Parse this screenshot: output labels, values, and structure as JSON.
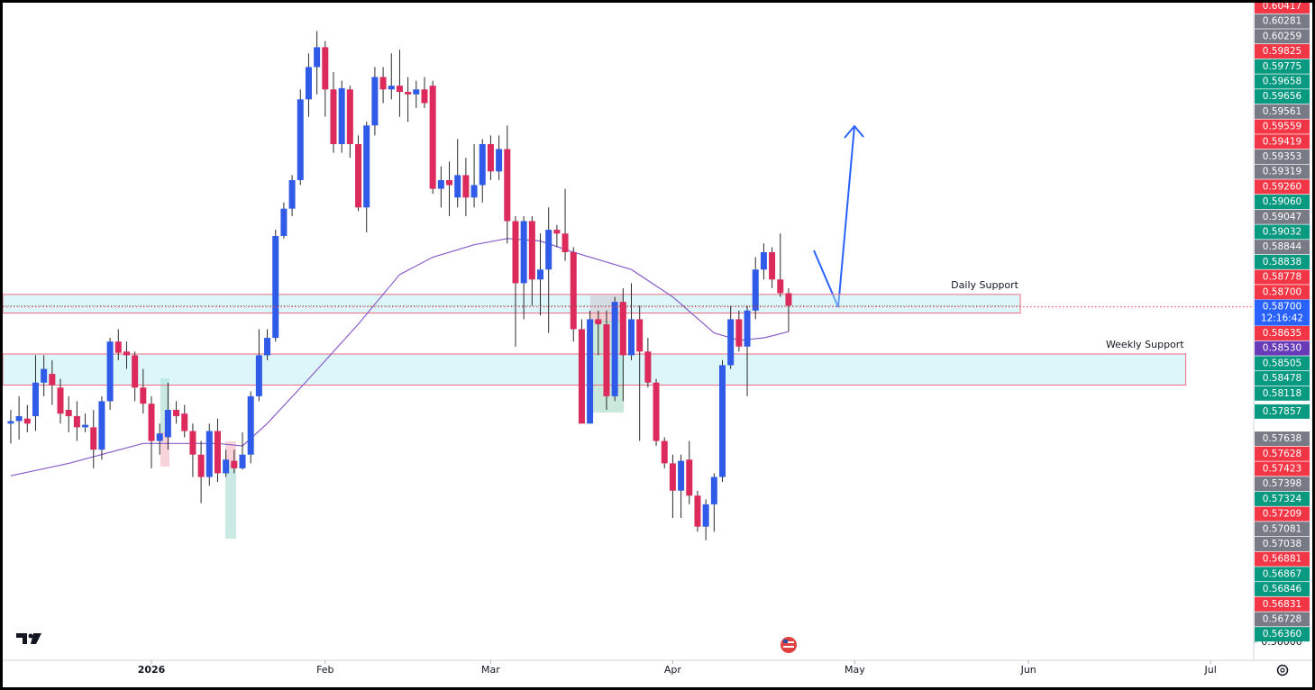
{
  "chart_data": {
    "type": "candlestick",
    "up_color": "#2f5be8",
    "down_color": "#dc2a5c",
    "wick_color": "#2a2a2a",
    "xlim": [
      -1.3,
      150.1
    ],
    "ylim": [
      0.5584,
      0.6117
    ],
    "xticks": [
      {
        "value": 17,
        "label": "2026"
      },
      {
        "value": 38,
        "label": "Feb"
      },
      {
        "value": 58,
        "label": "Mar"
      },
      {
        "value": 80,
        "label": "Apr"
      },
      {
        "value": 102,
        "label": "May"
      },
      {
        "value": 123,
        "label": "Jun"
      },
      {
        "value": 145,
        "label": "Jul"
      }
    ],
    "yticks": [
      {
        "value": 0.56,
        "label": "0.56000"
      }
    ],
    "ohlc": [
      [
        0.5776,
        0.5787,
        0.576,
        0.5778
      ],
      [
        0.5778,
        0.5798,
        0.5763,
        0.5782
      ],
      [
        0.578,
        0.5791,
        0.5769,
        0.5776
      ],
      [
        0.5782,
        0.5831,
        0.577,
        0.5809
      ],
      [
        0.5809,
        0.5831,
        0.5798,
        0.582
      ],
      [
        0.5816,
        0.5827,
        0.5791,
        0.5807
      ],
      [
        0.5805,
        0.5812,
        0.5776,
        0.5784
      ],
      [
        0.5787,
        0.5798,
        0.5769,
        0.5782
      ],
      [
        0.5782,
        0.5794,
        0.5762,
        0.5773
      ],
      [
        0.5773,
        0.5784,
        0.5769,
        0.5775
      ],
      [
        0.5773,
        0.5787,
        0.574,
        0.5755
      ],
      [
        0.5755,
        0.5798,
        0.5747,
        0.5794
      ],
      [
        0.5794,
        0.5845,
        0.5787,
        0.5842
      ],
      [
        0.5842,
        0.5852,
        0.5827,
        0.5833
      ],
      [
        0.5834,
        0.5842,
        0.582,
        0.5831
      ],
      [
        0.5831,
        0.5834,
        0.5794,
        0.5805
      ],
      [
        0.5805,
        0.582,
        0.5784,
        0.5792
      ],
      [
        0.5792,
        0.5798,
        0.574,
        0.5762
      ],
      [
        0.5762,
        0.5776,
        0.5751,
        0.5768
      ],
      [
        0.5765,
        0.5809,
        0.5755,
        0.5787
      ],
      [
        0.5787,
        0.5794,
        0.5776,
        0.5782
      ],
      [
        0.5784,
        0.5791,
        0.5765,
        0.577
      ],
      [
        0.577,
        0.5776,
        0.5733,
        0.5751
      ],
      [
        0.5751,
        0.5762,
        0.5712,
        0.5733
      ],
      [
        0.5733,
        0.5776,
        0.5726,
        0.577
      ],
      [
        0.577,
        0.578,
        0.5729,
        0.5736
      ],
      [
        0.5736,
        0.5755,
        0.5733,
        0.5747
      ],
      [
        0.5746,
        0.5755,
        0.5736,
        0.574
      ],
      [
        0.574,
        0.5769,
        0.5739,
        0.5751
      ],
      [
        0.5751,
        0.5802,
        0.5744,
        0.5798
      ],
      [
        0.5798,
        0.5852,
        0.5794,
        0.5831
      ],
      [
        0.5831,
        0.5852,
        0.5827,
        0.5845
      ],
      [
        0.5845,
        0.5932,
        0.5842,
        0.5927
      ],
      [
        0.5927,
        0.5954,
        0.5925,
        0.5949
      ],
      [
        0.5949,
        0.5976,
        0.5943,
        0.5972
      ],
      [
        0.5972,
        0.6045,
        0.5968,
        0.6037
      ],
      [
        0.6037,
        0.6074,
        0.6023,
        0.6063
      ],
      [
        0.6063,
        0.6092,
        0.6041,
        0.6079
      ],
      [
        0.6079,
        0.6084,
        0.6023,
        0.6045
      ],
      [
        0.6045,
        0.6059,
        0.5994,
        0.6001
      ],
      [
        0.6001,
        0.6052,
        0.5994,
        0.6046
      ],
      [
        0.6045,
        0.6048,
        0.599,
        0.6001
      ],
      [
        0.6001,
        0.6008,
        0.5947,
        0.595
      ],
      [
        0.595,
        0.6019,
        0.593,
        0.6016
      ],
      [
        0.6016,
        0.6063,
        0.6008,
        0.6055
      ],
      [
        0.6055,
        0.6063,
        0.6034,
        0.6045
      ],
      [
        0.6045,
        0.6074,
        0.6037,
        0.6048
      ],
      [
        0.6048,
        0.6077,
        0.6023,
        0.6043
      ],
      [
        0.6043,
        0.6055,
        0.6019,
        0.6041
      ],
      [
        0.6041,
        0.6052,
        0.603,
        0.6045
      ],
      [
        0.6045,
        0.6055,
        0.603,
        0.6034
      ],
      [
        0.6048,
        0.6052,
        0.5961,
        0.5965
      ],
      [
        0.5965,
        0.5983,
        0.595,
        0.5972
      ],
      [
        0.5972,
        0.5987,
        0.5943,
        0.5968
      ],
      [
        0.5958,
        0.6005,
        0.595,
        0.5976
      ],
      [
        0.5976,
        0.599,
        0.5943,
        0.5958
      ],
      [
        0.5958,
        0.6001,
        0.595,
        0.5968
      ],
      [
        0.5968,
        0.6005,
        0.5954,
        0.6001
      ],
      [
        0.6001,
        0.6008,
        0.5972,
        0.5979
      ],
      [
        0.5979,
        0.6008,
        0.5972,
        0.5997
      ],
      [
        0.5997,
        0.6016,
        0.5921,
        0.5939
      ],
      [
        0.5939,
        0.5943,
        0.5838,
        0.5889
      ],
      [
        0.5889,
        0.5943,
        0.586,
        0.5939
      ],
      [
        0.5939,
        0.5943,
        0.5871,
        0.5892
      ],
      [
        0.5892,
        0.5929,
        0.5863,
        0.59
      ],
      [
        0.59,
        0.595,
        0.5849,
        0.5932
      ],
      [
        0.5932,
        0.5936,
        0.5918,
        0.5929
      ],
      [
        0.5929,
        0.5965,
        0.5907,
        0.5914
      ],
      [
        0.5914,
        0.5918,
        0.5842,
        0.5852
      ],
      [
        0.5852,
        0.586,
        0.5776,
        0.5776
      ],
      [
        0.5776,
        0.5867,
        0.5776,
        0.586
      ],
      [
        0.586,
        0.5867,
        0.5831,
        0.5856
      ],
      [
        0.5856,
        0.5867,
        0.5787,
        0.5798
      ],
      [
        0.5798,
        0.5878,
        0.5794,
        0.5874
      ],
      [
        0.5874,
        0.5885,
        0.5794,
        0.5831
      ],
      [
        0.5831,
        0.5889,
        0.5827,
        0.586
      ],
      [
        0.586,
        0.5871,
        0.5762,
        0.5834
      ],
      [
        0.5834,
        0.5845,
        0.5805,
        0.5809
      ],
      [
        0.5809,
        0.5812,
        0.5758,
        0.5762
      ],
      [
        0.5762,
        0.5765,
        0.574,
        0.5744
      ],
      [
        0.5744,
        0.5751,
        0.57,
        0.5722
      ],
      [
        0.5722,
        0.5751,
        0.57,
        0.5746
      ],
      [
        0.5747,
        0.5762,
        0.5711,
        0.5718
      ],
      [
        0.5718,
        0.5722,
        0.5689,
        0.5693
      ],
      [
        0.5693,
        0.5715,
        0.5682,
        0.5711
      ],
      [
        0.5711,
        0.5736,
        0.5689,
        0.5733
      ],
      [
        0.5733,
        0.5827,
        0.5729,
        0.5823
      ],
      [
        0.5823,
        0.5871,
        0.582,
        0.586
      ],
      [
        0.586,
        0.5867,
        0.5834,
        0.5838
      ],
      [
        0.5838,
        0.5871,
        0.5798,
        0.5867
      ],
      [
        0.5867,
        0.591,
        0.586,
        0.59
      ],
      [
        0.59,
        0.5921,
        0.5892,
        0.5914
      ],
      [
        0.5914,
        0.5918,
        0.5885,
        0.5892
      ],
      [
        0.5892,
        0.5929,
        0.5878,
        0.5881
      ],
      [
        0.5881,
        0.5885,
        0.585,
        0.5871
      ]
    ],
    "ma": {
      "color": "#8a5cc9",
      "x": [
        0,
        7,
        16,
        25,
        28,
        31,
        36,
        42,
        47,
        51,
        56,
        60,
        64,
        68,
        75,
        80,
        85,
        88,
        91,
        94
      ],
      "values": [
        0.5734,
        0.5744,
        0.576,
        0.576,
        0.5758,
        0.5776,
        0.5812,
        0.5856,
        0.5896,
        0.591,
        0.592,
        0.5925,
        0.5923,
        0.5914,
        0.59,
        0.5878,
        0.5849,
        0.5843,
        0.5845,
        0.585
      ]
    },
    "zones": [
      {
        "label": "Daily Support",
        "top": 0.588,
        "bottom": 0.5865,
        "end": 122
      },
      {
        "label": "Weekly Support",
        "top": 0.5832,
        "bottom": 0.5807,
        "end": 142
      }
    ],
    "price_tags": [
      {
        "value": 0.60417,
        "color": "#f23645"
      },
      {
        "value": 0.60281,
        "color": "#787b86"
      },
      {
        "value": 0.60259,
        "color": "#787b86"
      },
      {
        "value": 0.59825,
        "color": "#f23645"
      },
      {
        "value": 0.59775,
        "color": "#089981"
      },
      {
        "value": 0.59658,
        "color": "#089981"
      },
      {
        "value": 0.59656,
        "color": "#089981"
      },
      {
        "value": 0.59561,
        "color": "#787b86"
      },
      {
        "value": 0.59559,
        "color": "#f23645"
      },
      {
        "value": 0.59419,
        "color": "#f23645"
      },
      {
        "value": 0.59353,
        "color": "#787b86"
      },
      {
        "value": 0.59319,
        "color": "#787b86"
      },
      {
        "value": 0.5926,
        "label": "0.59260",
        "color": "#f23645"
      },
      {
        "value": 0.5906,
        "label": "0.59060",
        "color": "#089981"
      },
      {
        "value": 0.59047,
        "color": "#787b86"
      },
      {
        "value": 0.59032,
        "color": "#089981"
      },
      {
        "value": 0.58844,
        "color": "#787b86"
      },
      {
        "value": 0.58838,
        "color": "#089981"
      },
      {
        "value": 0.58778,
        "color": "#f23645"
      },
      {
        "value": 0.587,
        "label": "0.58700",
        "color": "#f23645"
      },
      {
        "value": 0.587,
        "label": "0.58700",
        "color": "#2962ff",
        "countdown": "12:16:42"
      },
      {
        "value": 0.58635,
        "color": "#f23645"
      },
      {
        "value": 0.5853,
        "label": "0.58530",
        "color": "#673ab7"
      },
      {
        "value": 0.58505,
        "color": "#089981"
      },
      {
        "value": 0.58478,
        "color": "#089981"
      },
      {
        "value": 0.58118,
        "color": "#089981"
      },
      {
        "value": 0.57857,
        "color": "#089981"
      },
      {
        "value": 0.57638,
        "color": "#787b86"
      },
      {
        "value": 0.57628,
        "color": "#f23645"
      },
      {
        "value": 0.57423,
        "color": "#f23645"
      },
      {
        "value": 0.57398,
        "color": "#787b86"
      },
      {
        "value": 0.57324,
        "color": "#089981"
      },
      {
        "value": 0.57209,
        "color": "#f23645"
      },
      {
        "value": 0.57081,
        "color": "#787b86"
      },
      {
        "value": 0.57038,
        "color": "#787b86"
      },
      {
        "value": 0.56881,
        "color": "#f23645"
      },
      {
        "value": 0.56867,
        "color": "#089981"
      },
      {
        "value": 0.56846,
        "color": "#089981"
      },
      {
        "value": 0.56831,
        "color": "#f23645"
      },
      {
        "value": 0.56728,
        "color": "#787b86"
      },
      {
        "value": 0.5636,
        "label": "0.56360",
        "color": "#089981"
      }
    ]
  }
}
